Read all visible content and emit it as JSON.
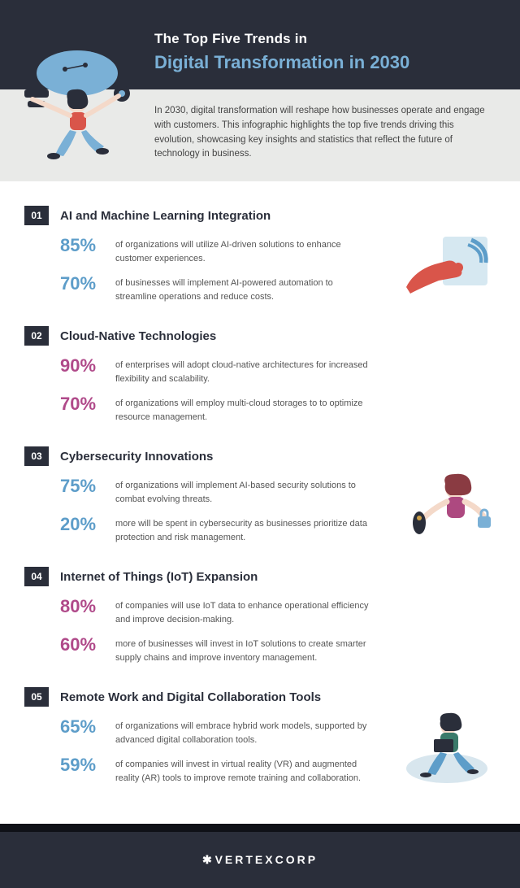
{
  "header": {
    "kicker": "The Top Five Trends in",
    "title": "Digital Transformation in 2030"
  },
  "intro": "In 2030, digital transformation will reshape how businesses operate and engage with customers. This infographic highlights the top five trends driving this evolution, showcasing key insights and statistics that reflect the future of technology in business.",
  "colors": {
    "blue": "#5d9dc9",
    "magenta": "#b04a8a",
    "dark": "#2a2e3a"
  },
  "trends": [
    {
      "num": "01",
      "title": "AI and Machine Learning Integration",
      "color": "#5d9dc9",
      "has_illus": true,
      "stats": [
        {
          "pct": "85%",
          "text": "of organizations will utilize AI-driven solutions to enhance customer experiences."
        },
        {
          "pct": "70%",
          "text": "of businesses will implement AI-powered automation to streamline operations and reduce costs."
        }
      ]
    },
    {
      "num": "02",
      "title": "Cloud-Native Technologies",
      "color": "#b04a8a",
      "has_illus": false,
      "stats": [
        {
          "pct": "90%",
          "text": "of enterprises will adopt cloud-native architectures for increased flexibility and scalability."
        },
        {
          "pct": "70%",
          "text": "of organizations will employ multi-cloud storages to to optimize resource management."
        }
      ]
    },
    {
      "num": "03",
      "title": "Cybersecurity Innovations",
      "color": "#5d9dc9",
      "has_illus": true,
      "stats": [
        {
          "pct": "75%",
          "text": "of organizations will implement AI-based security solutions to combat evolving threats."
        },
        {
          "pct": "20%",
          "text": "more will be spent in cybersecurity as businesses prioritize data protection and risk management."
        }
      ]
    },
    {
      "num": "04",
      "title": "Internet of Things (IoT) Expansion",
      "color": "#b04a8a",
      "has_illus": false,
      "stats": [
        {
          "pct": "80%",
          "text": "of companies will use IoT data to enhance operational efficiency and improve decision-making."
        },
        {
          "pct": "60%",
          "text": "more of businesses will invest in IoT solutions to create smarter supply chains and improve inventory management."
        }
      ]
    },
    {
      "num": "05",
      "title": "Remote Work and Digital Collaboration Tools",
      "color": "#5d9dc9",
      "has_illus": true,
      "stats": [
        {
          "pct": "65%",
          "text": "of organizations will embrace hybrid work models, supported by advanced digital collaboration tools."
        },
        {
          "pct": "59%",
          "text": "of companies will invest in virtual reality (VR) and augmented reality (AR) tools to improve remote training and collaboration."
        }
      ]
    }
  ],
  "footer": {
    "brand": "VERTEXCORP"
  }
}
